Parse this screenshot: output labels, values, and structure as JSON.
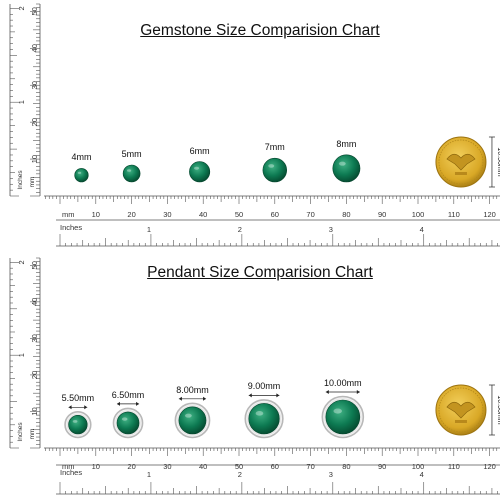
{
  "charts": [
    {
      "title": "Gemstone Size Comparision Chart",
      "type": "gemstone",
      "items": [
        {
          "label": "4mm",
          "mm": 4,
          "x": 6
        },
        {
          "label": "5mm",
          "mm": 5,
          "x": 20
        },
        {
          "label": "6mm",
          "mm": 6,
          "x": 39
        },
        {
          "label": "7mm",
          "mm": 7,
          "x": 60
        },
        {
          "label": "8mm",
          "mm": 8,
          "x": 80
        }
      ],
      "coin_label": "16.50mm"
    },
    {
      "title": "Pendant Size Comparision Chart",
      "type": "pendant",
      "items": [
        {
          "label": "5.50mm",
          "mm": 5.5,
          "x": 5
        },
        {
          "label": "6.50mm",
          "mm": 6.5,
          "x": 19
        },
        {
          "label": "8.00mm",
          "mm": 8.0,
          "x": 37
        },
        {
          "label": "9.00mm",
          "mm": 9.0,
          "x": 57
        },
        {
          "label": "10.00mm",
          "mm": 10.0,
          "x": 79
        }
      ],
      "coin_label": "16.50mm"
    }
  ],
  "ruler": {
    "mm_word": "mm",
    "inches_word": "Inches",
    "mm_ticks": [
      "10",
      "20",
      "30",
      "40",
      "50",
      "60",
      "70",
      "80",
      "90",
      "100",
      "110",
      "120"
    ],
    "inch_ticks": [
      "1",
      "2",
      "3",
      "4"
    ],
    "vertical_ticks": [
      "10",
      "20",
      "30",
      "40",
      "50"
    ],
    "vertical_inch_ticks": [
      "1",
      "2"
    ]
  },
  "colors": {
    "emerald": "#0d7a52",
    "emerald_dark": "#05462d",
    "emerald_light": "#3fb083",
    "coin": "#d9a826",
    "coin_dark": "#9c7310",
    "ruler_line": "#555555",
    "title": "#111111"
  }
}
